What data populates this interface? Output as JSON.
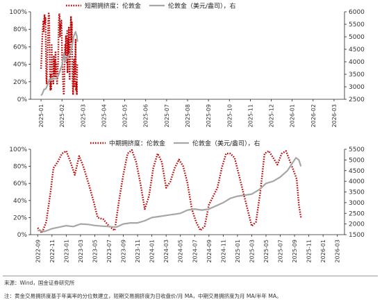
{
  "colors": {
    "ratio": "#c00000",
    "gold": "#a6a6a6",
    "axis": "#222222"
  },
  "chart_data": [
    {
      "type": "line",
      "legend": {
        "placement": "top-center",
        "ratio_label": "短期拥挤度：伦敦金",
        "gold_label": "伦敦金（美元/盎司），右"
      },
      "x": [
        "2025-01",
        "2025-02",
        "2025-03",
        "2025-04",
        "2025-05",
        "2025-06",
        "2025-07",
        "2025-08",
        "2025-09",
        "2025-10",
        "2025-11",
        "2025-12",
        "2026-01",
        "2026-02",
        "2026-03"
      ],
      "ylim": [
        0,
        1
      ],
      "y_ticks": [
        "0%",
        "20%",
        "40%",
        "60%",
        "80%",
        "100%"
      ],
      "y2lim": [
        2500,
        6000
      ],
      "y2_ticks": [
        "2500",
        "3000",
        "3500",
        "4000",
        "4500",
        "5000",
        "5500",
        "6000"
      ],
      "series": [
        {
          "name": "短期拥挤度：伦敦金",
          "axis": "left",
          "style": "dotted",
          "values": [
            [
              0.0,
              0.35
            ],
            [
              0.03,
              0.52
            ],
            [
              0.06,
              0.7
            ],
            [
              0.09,
              0.82
            ],
            [
              0.11,
              0.9
            ],
            [
              0.13,
              0.78
            ],
            [
              0.15,
              0.92
            ],
            [
              0.17,
              0.97
            ],
            [
              0.19,
              0.86
            ],
            [
              0.21,
              0.93
            ],
            [
              0.23,
              0.6
            ],
            [
              0.25,
              0.25
            ],
            [
              0.27,
              0.18
            ],
            [
              0.29,
              0.4
            ],
            [
              0.31,
              0.58
            ],
            [
              0.33,
              0.72
            ],
            [
              0.35,
              0.9
            ],
            [
              0.37,
              0.98
            ],
            [
              0.39,
              0.96
            ],
            [
              0.41,
              0.55
            ],
            [
              0.43,
              0.2
            ],
            [
              0.45,
              0.1
            ],
            [
              0.47,
              0.28
            ],
            [
              0.49,
              0.12
            ],
            [
              0.51,
              0.62
            ],
            [
              0.53,
              0.38
            ],
            [
              0.55,
              0.3
            ],
            [
              0.57,
              0.22
            ],
            [
              0.59,
              0.18
            ],
            [
              0.61,
              0.5
            ],
            [
              0.63,
              0.28
            ],
            [
              0.65,
              0.45
            ],
            [
              0.67,
              0.25
            ],
            [
              0.69,
              0.55
            ],
            [
              0.71,
              0.3
            ],
            [
              0.73,
              0.4
            ],
            [
              0.75,
              0.22
            ],
            [
              0.77,
              0.18
            ],
            [
              0.79,
              0.3
            ],
            [
              0.81,
              0.4
            ],
            [
              0.83,
              0.6
            ],
            [
              0.85,
              0.88
            ],
            [
              0.87,
              0.98
            ],
            [
              0.89,
              0.95
            ],
            [
              0.91,
              0.72
            ],
            [
              0.93,
              0.85
            ],
            [
              0.95,
              0.82
            ],
            [
              0.97,
              0.9
            ],
            [
              0.99,
              0.75
            ],
            [
              1.01,
              0.45
            ],
            [
              1.03,
              0.38
            ],
            [
              1.05,
              0.2
            ],
            [
              1.07,
              0.1
            ],
            [
              1.09,
              0.05
            ],
            [
              1.11,
              0.18
            ],
            [
              1.13,
              0.4
            ],
            [
              1.15,
              0.62
            ],
            [
              1.17,
              0.5
            ],
            [
              1.19,
              0.72
            ],
            [
              1.21,
              0.6
            ],
            [
              1.23,
              0.42
            ],
            [
              1.25,
              0.78
            ],
            [
              1.27,
              0.3
            ],
            [
              1.29,
              0.7
            ],
            [
              1.31,
              0.48
            ],
            [
              1.33,
              0.82
            ],
            [
              1.35,
              0.6
            ],
            [
              1.37,
              0.22
            ],
            [
              1.39,
              0.55
            ],
            [
              1.41,
              0.8
            ],
            [
              1.43,
              0.95
            ],
            [
              1.45,
              0.65
            ],
            [
              1.47,
              0.88
            ],
            [
              1.49,
              0.4
            ],
            [
              1.51,
              0.2
            ],
            [
              1.53,
              0.05
            ],
            [
              1.55,
              0.3
            ],
            [
              1.57,
              0.45
            ],
            [
              1.59,
              0.15
            ],
            [
              1.61,
              0.5
            ],
            [
              1.63,
              0.28
            ],
            [
              1.65,
              0.68
            ],
            [
              1.67,
              0.1
            ],
            [
              1.69,
              0.2
            ],
            [
              1.71,
              0.05
            ],
            [
              1.73,
              0.4
            ]
          ]
        },
        {
          "name": "伦敦金（美元/盎司），右",
          "axis": "right",
          "style": "solid",
          "values": [
            [
              0.0,
              2650
            ],
            [
              0.05,
              2700
            ],
            [
              0.1,
              2800
            ],
            [
              0.15,
              2900
            ],
            [
              0.2,
              2900
            ],
            [
              0.25,
              2950
            ],
            [
              0.3,
              3050
            ],
            [
              0.35,
              3150
            ],
            [
              0.4,
              3300
            ],
            [
              0.45,
              3250
            ],
            [
              0.5,
              3350
            ],
            [
              0.55,
              3320
            ],
            [
              0.6,
              3350
            ],
            [
              0.65,
              3320
            ],
            [
              0.7,
              3320
            ],
            [
              0.75,
              3350
            ],
            [
              0.8,
              3400
            ],
            [
              0.85,
              3500
            ],
            [
              0.9,
              3620
            ],
            [
              0.95,
              3750
            ],
            [
              1.0,
              3850
            ],
            [
              1.05,
              4100
            ],
            [
              1.1,
              4350
            ],
            [
              1.15,
              4000
            ],
            [
              1.2,
              4100
            ],
            [
              1.25,
              4150
            ],
            [
              1.3,
              4200
            ],
            [
              1.35,
              4300
            ],
            [
              1.4,
              4350
            ],
            [
              1.45,
              4500
            ],
            [
              1.5,
              4700
            ],
            [
              1.55,
              5000
            ],
            [
              1.6,
              5100
            ],
            [
              1.65,
              5200
            ],
            [
              1.68,
              5100
            ],
            [
              1.71,
              5050
            ],
            [
              1.74,
              4800
            ]
          ]
        }
      ]
    },
    {
      "type": "line",
      "legend": {
        "placement": "top-center",
        "ratio_label": "中期拥挤度：伦敦金",
        "gold_label": "伦敦金（美元/盎司），右"
      },
      "x": [
        "2022-09",
        "2022-11",
        "2023-01",
        "2023-03",
        "2023-05",
        "2023-07",
        "2023-09",
        "2023-11",
        "2024-01",
        "2024-03",
        "2024-05",
        "2024-07",
        "2024-09",
        "2024-11",
        "2025-01",
        "2025-03",
        "2025-05",
        "2025-07",
        "2025-09",
        "2025-11",
        "2026-01",
        "2026-03"
      ],
      "ylim": [
        0,
        1
      ],
      "y_ticks": [
        "0%",
        "20%",
        "40%",
        "60%",
        "80%",
        "100%"
      ],
      "y2lim": [
        1500,
        5500
      ],
      "y2_ticks": [
        "1500",
        "2000",
        "2500",
        "3000",
        "3500",
        "4000",
        "4500",
        "5000",
        "5500"
      ],
      "series": [
        {
          "name": "中期拥挤度：伦敦金",
          "axis": "left",
          "style": "dotted",
          "values": [
            [
              0.0,
              0.08
            ],
            [
              0.3,
              0.02
            ],
            [
              0.6,
              0.15
            ],
            [
              0.9,
              0.5
            ],
            [
              1.1,
              0.78
            ],
            [
              1.4,
              0.85
            ],
            [
              1.7,
              0.95
            ],
            [
              2.0,
              0.98
            ],
            [
              2.3,
              0.85
            ],
            [
              2.6,
              0.7
            ],
            [
              2.9,
              0.92
            ],
            [
              3.2,
              0.8
            ],
            [
              3.6,
              0.58
            ],
            [
              3.9,
              0.4
            ],
            [
              4.2,
              0.2
            ],
            [
              4.6,
              0.18
            ],
            [
              5.0,
              0.1
            ],
            [
              5.4,
              0.05
            ],
            [
              5.7,
              0.4
            ],
            [
              6.0,
              0.7
            ],
            [
              6.3,
              0.95
            ],
            [
              6.6,
              0.99
            ],
            [
              6.9,
              0.85
            ],
            [
              7.2,
              0.6
            ],
            [
              7.5,
              0.3
            ],
            [
              7.8,
              0.45
            ],
            [
              8.1,
              0.78
            ],
            [
              8.4,
              0.95
            ],
            [
              8.7,
              0.85
            ],
            [
              9.0,
              0.55
            ],
            [
              9.3,
              0.62
            ],
            [
              9.6,
              0.78
            ],
            [
              9.9,
              0.88
            ],
            [
              10.2,
              0.8
            ],
            [
              10.5,
              0.6
            ],
            [
              10.8,
              0.3
            ],
            [
              11.1,
              0.15
            ],
            [
              11.4,
              0.05
            ],
            [
              11.7,
              0.1
            ],
            [
              12.0,
              0.35
            ],
            [
              12.3,
              0.45
            ],
            [
              12.6,
              0.55
            ],
            [
              12.9,
              0.78
            ],
            [
              13.2,
              0.95
            ],
            [
              13.5,
              0.95
            ],
            [
              13.8,
              0.9
            ],
            [
              14.1,
              0.7
            ],
            [
              14.4,
              0.5
            ],
            [
              14.7,
              0.3
            ],
            [
              15.0,
              0.1
            ],
            [
              15.3,
              0.15
            ],
            [
              15.6,
              0.5
            ],
            [
              15.9,
              0.95
            ],
            [
              16.2,
              0.98
            ],
            [
              16.5,
              0.9
            ],
            [
              16.8,
              0.82
            ],
            [
              17.1,
              0.95
            ],
            [
              17.4,
              0.98
            ],
            [
              17.7,
              0.85
            ],
            [
              18.0,
              0.72
            ],
            [
              18.15,
              0.65
            ],
            [
              18.3,
              0.35
            ],
            [
              18.45,
              0.2
            ]
          ]
        },
        {
          "name": "伦敦金（美元/盎司），右",
          "axis": "right",
          "style": "solid",
          "values": [
            [
              0.0,
              1700
            ],
            [
              0.5,
              1650
            ],
            [
              1.0,
              1780
            ],
            [
              1.5,
              1850
            ],
            [
              2.0,
              1920
            ],
            [
              2.5,
              1880
            ],
            [
              3.0,
              2000
            ],
            [
              3.5,
              1980
            ],
            [
              4.0,
              1930
            ],
            [
              4.5,
              1900
            ],
            [
              5.0,
              1880
            ],
            [
              5.5,
              1850
            ],
            [
              6.0,
              2000
            ],
            [
              6.5,
              2050
            ],
            [
              7.0,
              2050
            ],
            [
              7.5,
              2150
            ],
            [
              8.0,
              2300
            ],
            [
              8.5,
              2350
            ],
            [
              9.0,
              2400
            ],
            [
              9.5,
              2450
            ],
            [
              10.0,
              2500
            ],
            [
              10.5,
              2650
            ],
            [
              11.0,
              2700
            ],
            [
              11.5,
              2650
            ],
            [
              12.0,
              2700
            ],
            [
              12.5,
              2850
            ],
            [
              13.0,
              3000
            ],
            [
              13.5,
              3200
            ],
            [
              14.0,
              3300
            ],
            [
              14.5,
              3350
            ],
            [
              15.0,
              3400
            ],
            [
              15.5,
              3600
            ],
            [
              16.0,
              3900
            ],
            [
              16.5,
              4000
            ],
            [
              17.0,
              4200
            ],
            [
              17.5,
              4500
            ],
            [
              17.8,
              4800
            ],
            [
              18.1,
              5100
            ],
            [
              18.3,
              5000
            ],
            [
              18.45,
              4700
            ]
          ]
        }
      ]
    }
  ],
  "source": "来源：Wind，国金证券研究所",
  "footnote": "注：黄金交易拥挤度基于年离率的分位数建立，短期交易拥挤度为日收盘价/月 MA，中期交易拥挤度为月 MA/半年 MA。"
}
